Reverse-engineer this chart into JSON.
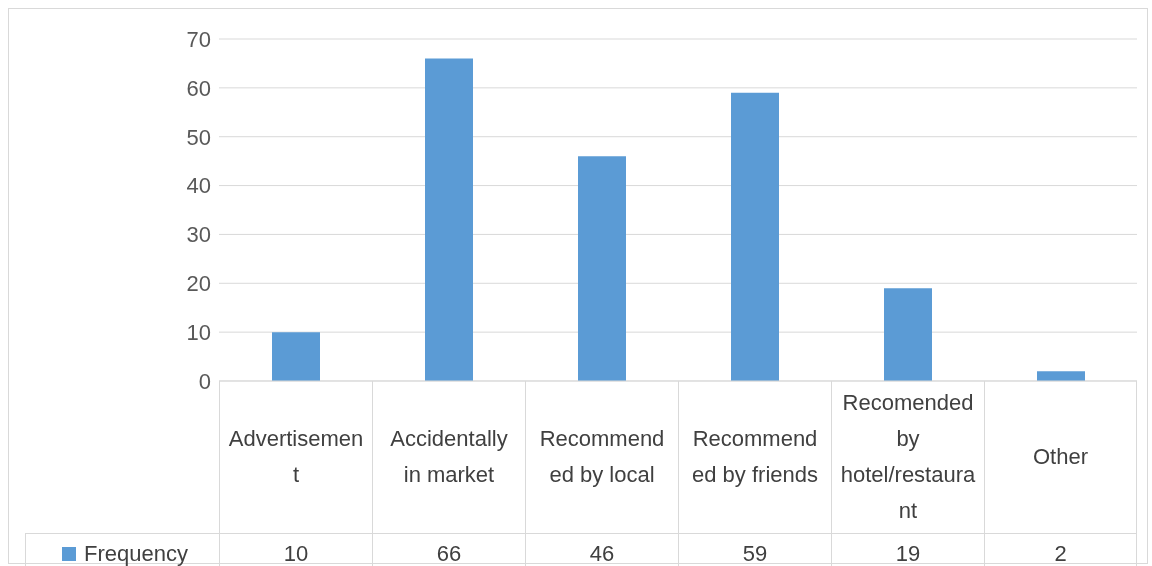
{
  "chart_data": {
    "type": "bar",
    "categories": [
      "Advertisement",
      "Accidentally in market",
      "Recommended by local",
      "Recommended by friends",
      "Recomended by hotel/restaurant",
      "Other"
    ],
    "series": [
      {
        "name": "Frequency",
        "color": "#5b9bd5",
        "values": [
          10,
          66,
          46,
          59,
          19,
          2
        ]
      }
    ],
    "ylim": [
      0,
      70
    ],
    "yticks": [
      0,
      10,
      20,
      30,
      40,
      50,
      60,
      70
    ],
    "grid": "y",
    "legend": "bottom",
    "data_labels": true
  }
}
